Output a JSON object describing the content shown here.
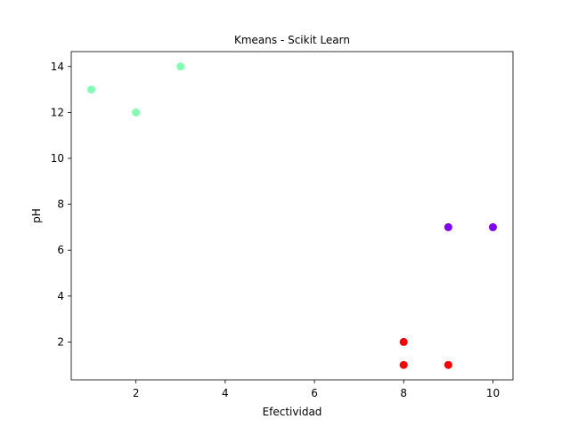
{
  "chart_data": {
    "type": "scatter",
    "title": "Kmeans - Scikit Learn",
    "xlabel": "Efectividad",
    "ylabel": "pH",
    "xlim": [
      0.55,
      10.45
    ],
    "ylim": [
      0.35,
      14.65
    ],
    "xticks": [
      2,
      4,
      6,
      8,
      10
    ],
    "yticks": [
      2,
      4,
      6,
      8,
      10,
      12,
      14
    ],
    "grid": false,
    "points": [
      {
        "x": 1,
        "y": 13,
        "cluster": 1
      },
      {
        "x": 2,
        "y": 12,
        "cluster": 1
      },
      {
        "x": 3,
        "y": 14,
        "cluster": 1
      },
      {
        "x": 9,
        "y": 7,
        "cluster": 0
      },
      {
        "x": 10,
        "y": 7,
        "cluster": 0
      },
      {
        "x": 8,
        "y": 2,
        "cluster": 2
      },
      {
        "x": 8,
        "y": 1,
        "cluster": 2
      },
      {
        "x": 9,
        "y": 1,
        "cluster": 2
      }
    ],
    "cluster_colors": [
      "#8000ff",
      "#80ffb4",
      "#ff0000"
    ]
  }
}
